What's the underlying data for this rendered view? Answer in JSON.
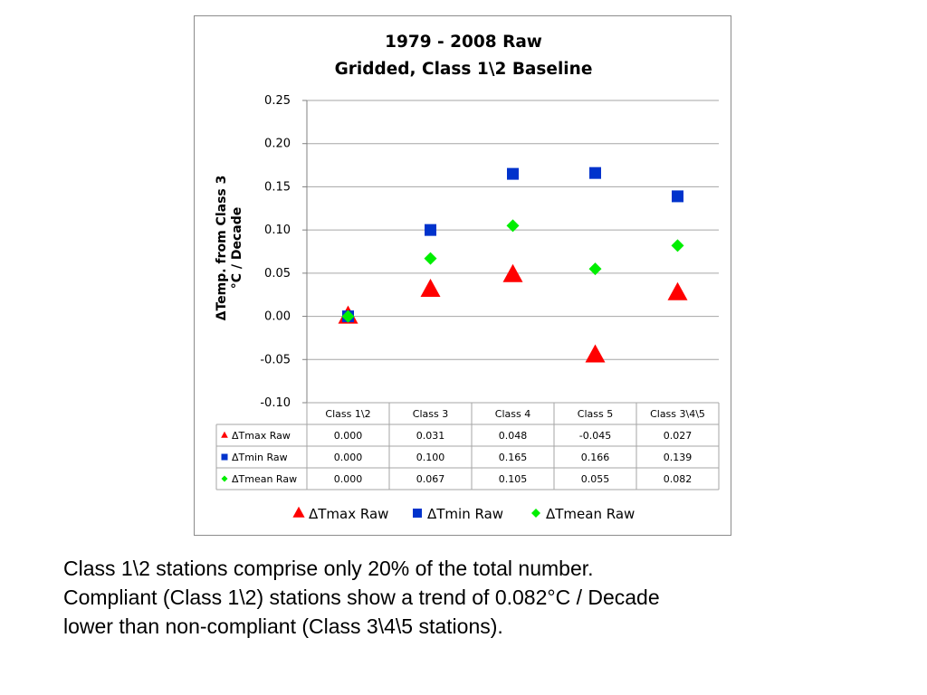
{
  "chart_data": {
    "type": "scatter",
    "title": [
      "1979 - 2008 Raw",
      "Gridded, Class 1\\2 Baseline"
    ],
    "ylabel": [
      "ΔTemp. from Class 3",
      "°C / Decade"
    ],
    "categories": [
      "Class 1\\2",
      "Class 3",
      "Class 4",
      "Class 5",
      "Class 3\\4\\5"
    ],
    "ylim": [
      -0.1,
      0.25
    ],
    "yticks": [
      "0.25",
      "0.20",
      "0.15",
      "0.10",
      "0.05",
      "0.00",
      "-0.05",
      "-0.10"
    ],
    "grid": true,
    "legend_position": "bottom",
    "series": [
      {
        "name": "ΔTmax Raw",
        "marker": "triangle",
        "color": "#ff0000",
        "values": [
          0.0,
          0.031,
          0.048,
          -0.045,
          0.027
        ],
        "labels": [
          "0.000",
          "0.031",
          "0.048",
          "-0.045",
          "0.027"
        ]
      },
      {
        "name": "ΔTmin Raw",
        "marker": "square",
        "color": "#0033cc",
        "values": [
          0.0,
          0.1,
          0.165,
          0.166,
          0.139
        ],
        "labels": [
          "0.000",
          "0.100",
          "0.165",
          "0.166",
          "0.139"
        ]
      },
      {
        "name": "ΔTmean Raw",
        "marker": "diamond",
        "color": "#00ee00",
        "values": [
          0.0,
          0.067,
          0.105,
          0.055,
          0.082
        ],
        "labels": [
          "0.000",
          "0.067",
          "0.105",
          "0.055",
          "0.082"
        ]
      }
    ]
  },
  "caption": {
    "lines": [
      "Class 1\\2 stations comprise only 20% of the total number.",
      "Compliant (Class 1\\2) stations show a trend of 0.082°C / Decade",
      "lower than non-compliant (Class 3\\4\\5 stations)."
    ]
  }
}
